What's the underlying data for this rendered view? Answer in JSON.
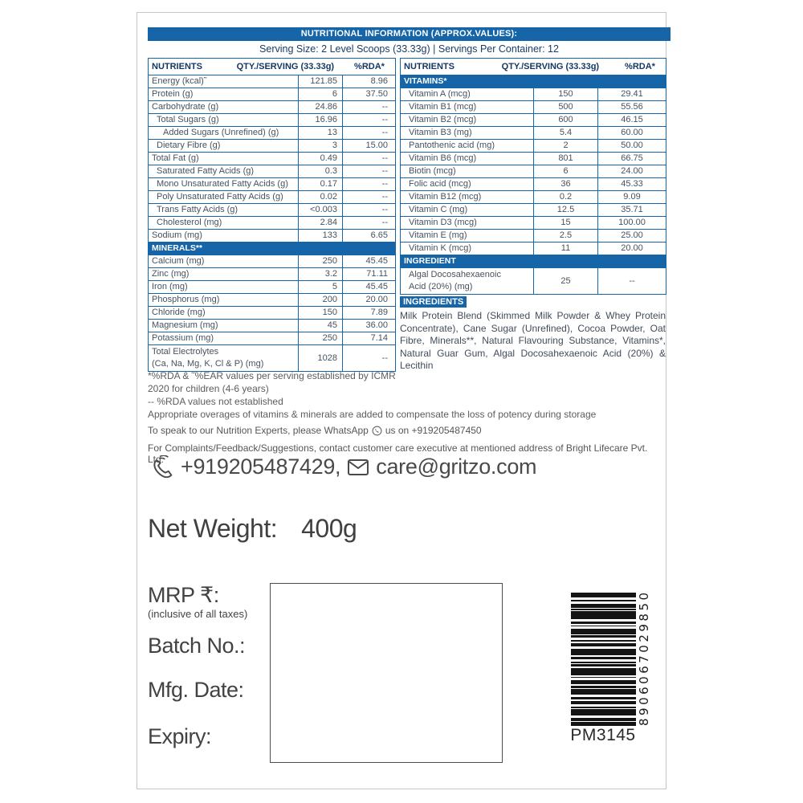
{
  "header": {
    "title": "NUTRITIONAL INFORMATION (APPROX.VALUES):",
    "serving_line": "Serving Size: 2 Level Scoops (33.33g) | Servings Per Container: 12"
  },
  "columns": {
    "nutrients": "NUTRIENTS",
    "qty": "QTY./SERVING (33.33g)",
    "rda": "%RDA*"
  },
  "chart_data": {
    "type": "table",
    "left_table": {
      "rows": [
        {
          "type": "row",
          "label": "Energy (kcal)˜",
          "qty": "121.85",
          "rda": "8.96",
          "indent": 0
        },
        {
          "type": "row",
          "label": "Protein (g)",
          "qty": "6",
          "rda": "37.50",
          "indent": 0
        },
        {
          "type": "row",
          "label": "Carbohydrate (g)",
          "qty": "24.86",
          "rda": "--",
          "indent": 0
        },
        {
          "type": "row",
          "label": "Total Sugars (g)",
          "qty": "16.96",
          "rda": "--",
          "indent": 1
        },
        {
          "type": "row",
          "label": "Added Sugars (Unrefined) (g)",
          "qty": "13",
          "rda": "--",
          "indent": 2
        },
        {
          "type": "row",
          "label": "Dietary Fibre (g)",
          "qty": "3",
          "rda": "15.00",
          "indent": 1
        },
        {
          "type": "row",
          "label": "Total Fat (g)",
          "qty": "0.49",
          "rda": "--",
          "indent": 0
        },
        {
          "type": "row",
          "label": "Saturated Fatty Acids (g)",
          "qty": "0.3",
          "rda": "--",
          "indent": 1
        },
        {
          "type": "row",
          "label": "Mono Unsaturated Fatty Acids (g)",
          "qty": "0.17",
          "rda": "--",
          "indent": 1
        },
        {
          "type": "row",
          "label": "Poly Unsaturated Fatty Acids (g)",
          "qty": "0.02",
          "rda": "--",
          "indent": 1
        },
        {
          "type": "row",
          "label": "Trans Fatty Acids (g)",
          "qty": "<0.003",
          "rda": "--",
          "indent": 1
        },
        {
          "type": "row",
          "label": "Cholesterol (mg)",
          "qty": "2.84",
          "rda": "--",
          "indent": 1
        },
        {
          "type": "row",
          "label": "Sodium (mg)",
          "qty": "133",
          "rda": "6.65",
          "indent": 0
        },
        {
          "type": "section",
          "label": "MINERALS**"
        },
        {
          "type": "row",
          "label": "Calcium (mg)",
          "qty": "250",
          "rda": "45.45",
          "indent": 0
        },
        {
          "type": "row",
          "label": "Zinc (mg)",
          "qty": "3.2",
          "rda": "71.11",
          "indent": 0
        },
        {
          "type": "row",
          "label": "Iron (mg)",
          "qty": "5",
          "rda": "45.45",
          "indent": 0
        },
        {
          "type": "row",
          "label": "Phosphorus (mg)",
          "qty": "200",
          "rda": "20.00",
          "indent": 0
        },
        {
          "type": "row",
          "label": "Chloride (mg)",
          "qty": "150",
          "rda": "7.89",
          "indent": 0
        },
        {
          "type": "row",
          "label": "Magnesium (mg)",
          "qty": "45",
          "rda": "36.00",
          "indent": 0
        },
        {
          "type": "row",
          "label": "Potassium (mg)",
          "qty": "250",
          "rda": "7.14",
          "indent": 0
        },
        {
          "type": "row",
          "label": "Total Electrolytes\n(Ca, Na, Mg, K, Cl & P) (mg)",
          "qty": "1028",
          "rda": "--",
          "indent": 0,
          "tall": true
        }
      ]
    },
    "right_table": {
      "rows": [
        {
          "type": "section",
          "label": "VITAMINS*"
        },
        {
          "type": "row",
          "label": "Vitamin A (mcg)",
          "qty": "150",
          "rda": "29.41",
          "indent": 1
        },
        {
          "type": "row",
          "label": "Vitamin B1 (mcg)",
          "qty": "500",
          "rda": "55.56",
          "indent": 1
        },
        {
          "type": "row",
          "label": "Vitamin B2 (mcg)",
          "qty": "600",
          "rda": "46.15",
          "indent": 1
        },
        {
          "type": "row",
          "label": "Vitamin B3 (mg)",
          "qty": "5.4",
          "rda": "60.00",
          "indent": 1
        },
        {
          "type": "row",
          "label": "Pantothenic acid (mg)",
          "qty": "2",
          "rda": "50.00",
          "indent": 1
        },
        {
          "type": "row",
          "label": "Vitamin B6 (mcg)",
          "qty": "801",
          "rda": "66.75",
          "indent": 1
        },
        {
          "type": "row",
          "label": "Biotin (mcg)",
          "qty": "6",
          "rda": "24.00",
          "indent": 1
        },
        {
          "type": "row",
          "label": "Folic acid (mcg)",
          "qty": "36",
          "rda": "45.33",
          "indent": 1
        },
        {
          "type": "row",
          "label": "Vitamin B12 (mcg)",
          "qty": "0.2",
          "rda": "9.09",
          "indent": 1
        },
        {
          "type": "row",
          "label": "Vitamin C (mg)",
          "qty": "12.5",
          "rda": "35.71",
          "indent": 1
        },
        {
          "type": "row",
          "label": "Vitamin D3 (mcg)",
          "qty": "15",
          "rda": "100.00",
          "indent": 1
        },
        {
          "type": "row",
          "label": "Vitamin E (mg)",
          "qty": "2.5",
          "rda": "25.00",
          "indent": 1
        },
        {
          "type": "row",
          "label": "Vitamin K (mcg)",
          "qty": "11",
          "rda": "20.00",
          "indent": 1
        },
        {
          "type": "section",
          "label": "INGREDIENT"
        },
        {
          "type": "row",
          "label": "Algal Docosahexaenoic\nAcid (20%) (mg)",
          "qty": "25",
          "rda": "--",
          "indent": 1,
          "tall": true
        }
      ]
    }
  },
  "ingredients": {
    "title": "INGREDIENTS",
    "text": "Milk Protein Blend (Skimmed Milk Powder & Whey Protein Concentrate), Cane Sugar (Unrefined), Cocoa Powder, Oat Fibre, Minerals**, Natural Flavouring Substance, Vitamins*, Natural Guar Gum,  Algal Docosahexaenoic Acid (20%) & Lecithin"
  },
  "footnotes": [
    "*%RDA & ˜%EAR values per serving established by ICMR",
    "2020 for children (4-6 years)",
    "-- %RDA values not established",
    "Appropriate overages of vitamins & minerals are added to compensate the loss of potency during storage"
  ],
  "contact": {
    "whatsapp_pre": "To speak to our Nutrition Experts, please WhatsApp",
    "whatsapp_post": "us on +919205487450",
    "complaints_line": "For Complaints/Feedback/Suggestions, contact customer care executive at mentioned address of Bright Lifecare Pvt. Ltd.",
    "phone_big": "+919205487429,",
    "email_big": "care@gritzo.com"
  },
  "product": {
    "net_weight_label": "Net Weight:",
    "net_weight_value": "400g",
    "mrp_label": "MRP ₹:",
    "mrp_note": "(inclusive of all taxes)",
    "batch_label": "Batch No.:",
    "mfg_label": "Mfg. Date:",
    "expiry_label": "Expiry:"
  },
  "barcode": {
    "number": "8906067029850",
    "code": "PM3145"
  },
  "colors": {
    "brand_blue": "#1565a8",
    "header_text": "#14365f",
    "table_text": "#47525e"
  }
}
